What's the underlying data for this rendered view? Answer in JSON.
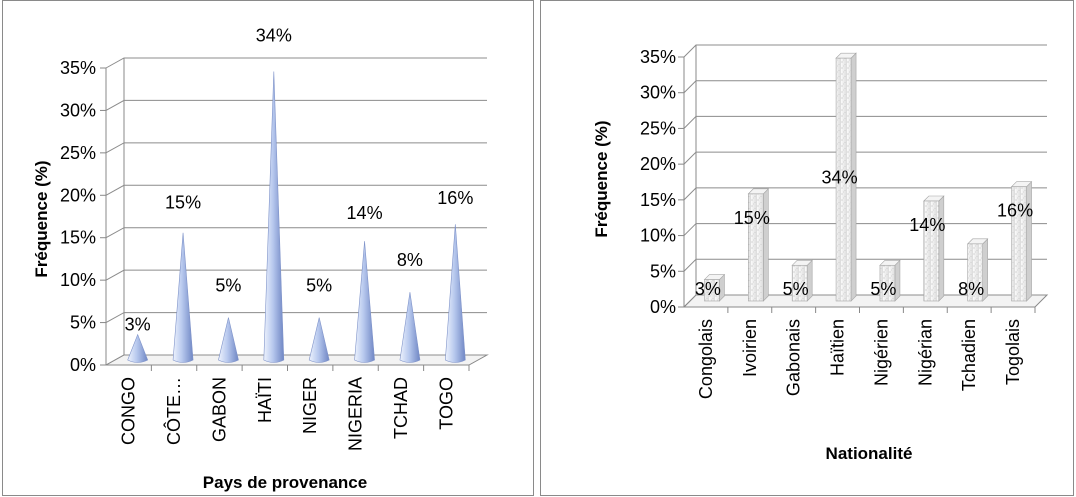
{
  "chart_data": [
    {
      "type": "bar",
      "style": "3d-cone",
      "xlabel": "Pays de provenance",
      "ylabel": "Fréquence (%)",
      "ylim": [
        0,
        35
      ],
      "yticks": [
        "0%",
        "5%",
        "10%",
        "15%",
        "20%",
        "25%",
        "30%",
        "35%"
      ],
      "categories": [
        "CONGO",
        "CÔTE…",
        "GABON",
        "HAÏTI",
        "NIGER",
        "NIGERIA",
        "TCHAD",
        "TOGO"
      ],
      "values": [
        3,
        15,
        5,
        34,
        5,
        14,
        8,
        16
      ],
      "data_labels": [
        "3%",
        "15%",
        "5%",
        "34%",
        "5%",
        "14%",
        "8%",
        "16%"
      ],
      "grid": true,
      "bar_color": "#a9bde6"
    },
    {
      "type": "bar",
      "style": "3d-column",
      "xlabel": "Nationalité",
      "ylabel": "Fréquence (%)",
      "ylim": [
        0,
        35
      ],
      "yticks": [
        "0%",
        "5%",
        "10%",
        "15%",
        "20%",
        "25%",
        "30%",
        "35%"
      ],
      "categories": [
        "Congolais",
        "Ivoirien",
        "Gabonais",
        "Haïtien",
        "Nigérien",
        "Nigérian",
        "Tchadien",
        "Togolais"
      ],
      "values": [
        3,
        15,
        5,
        34,
        5,
        14,
        8,
        16
      ],
      "data_labels": [
        "3%",
        "15%",
        "5%",
        "34%",
        "5%",
        "14%",
        "8%",
        "16%"
      ],
      "grid": true,
      "bar_color": "#ececec"
    }
  ]
}
